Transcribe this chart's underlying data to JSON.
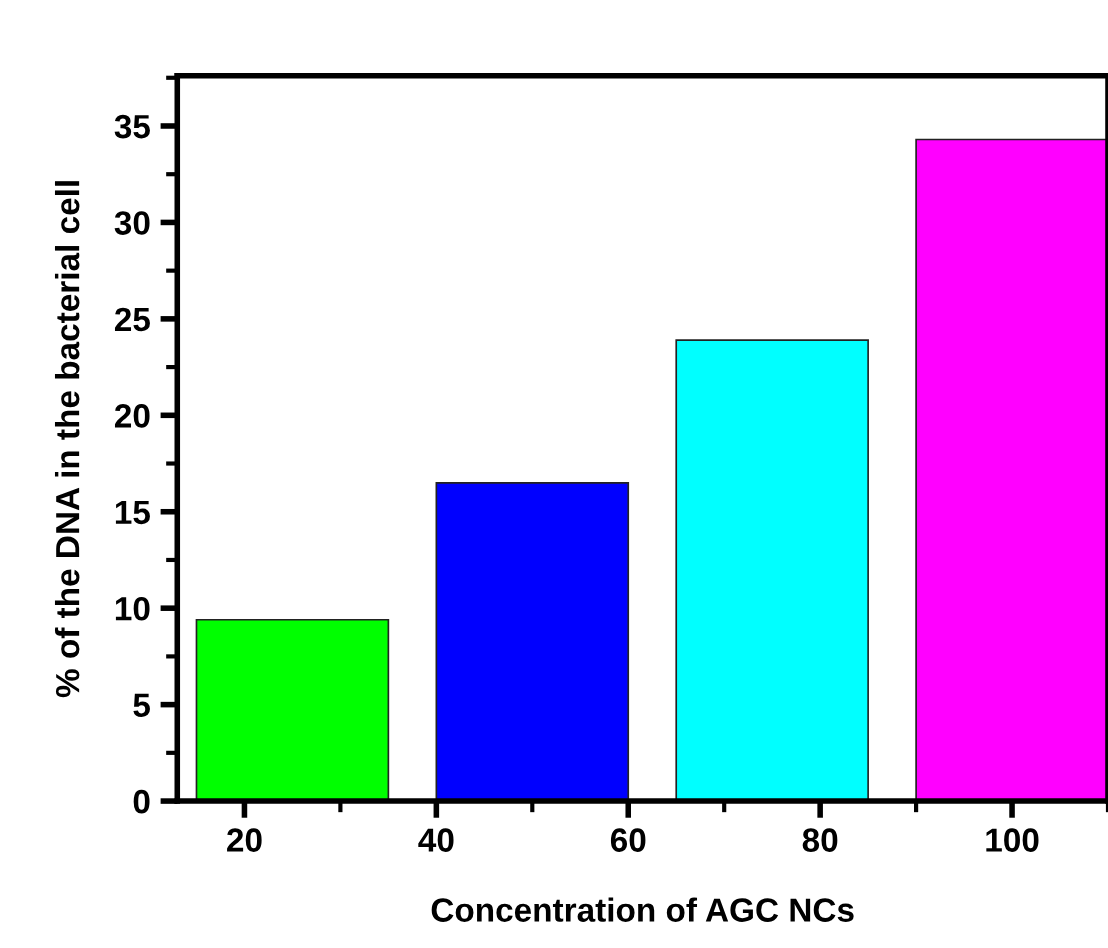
{
  "chart_data": {
    "type": "bar",
    "xlabel": "Concentration of AGC NCs",
    "ylabel": "% of the DNA in the bacterial cell",
    "x": [
      25,
      50,
      75,
      100
    ],
    "values": [
      9.4,
      16.5,
      23.9,
      34.3
    ],
    "colors": [
      "#00ff00",
      "#0000ff",
      "#00ffff",
      "#ff00ff"
    ],
    "xlim": [
      13,
      110
    ],
    "xticks": [
      20,
      40,
      60,
      80,
      100
    ],
    "ylim": [
      0,
      37.6
    ],
    "yticks": [
      0,
      5,
      10,
      15,
      20,
      25,
      30,
      35
    ],
    "grid": false,
    "legend": false
  }
}
